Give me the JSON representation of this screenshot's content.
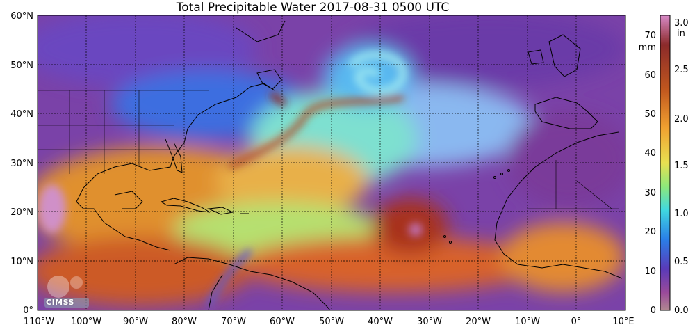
{
  "title": "Total Precipitable Water  2017-08-31 0500 UTC",
  "lat_labels": [
    "60°N",
    "50°N",
    "40°N",
    "30°N",
    "20°N",
    "10°N",
    "0°"
  ],
  "lon_labels": [
    "110°W",
    "100°W",
    "90°W",
    "80°W",
    "70°W",
    "60°W",
    "50°W",
    "40°W",
    "30°W",
    "20°W",
    "10°W",
    "0°",
    "10°E"
  ],
  "colorbar": {
    "mm_unit": "mm",
    "in_unit": "in",
    "mm_ticks": [
      "70",
      "60",
      "50",
      "40",
      "30",
      "20",
      "10",
      "0"
    ],
    "in_ticks": [
      "3.0",
      "2.5",
      "2.0",
      "1.5",
      "1.0",
      "0.5",
      "0.0"
    ],
    "colors": [
      "#c77fb5",
      "#8b2a2a",
      "#b3501e",
      "#e8882a",
      "#f2c23e",
      "#a8e86a",
      "#4fe0d8",
      "#2a8ee8",
      "#4a4ec8",
      "#7a3a9a",
      "#b07a8a"
    ]
  },
  "logo_text": "CIMSS"
}
